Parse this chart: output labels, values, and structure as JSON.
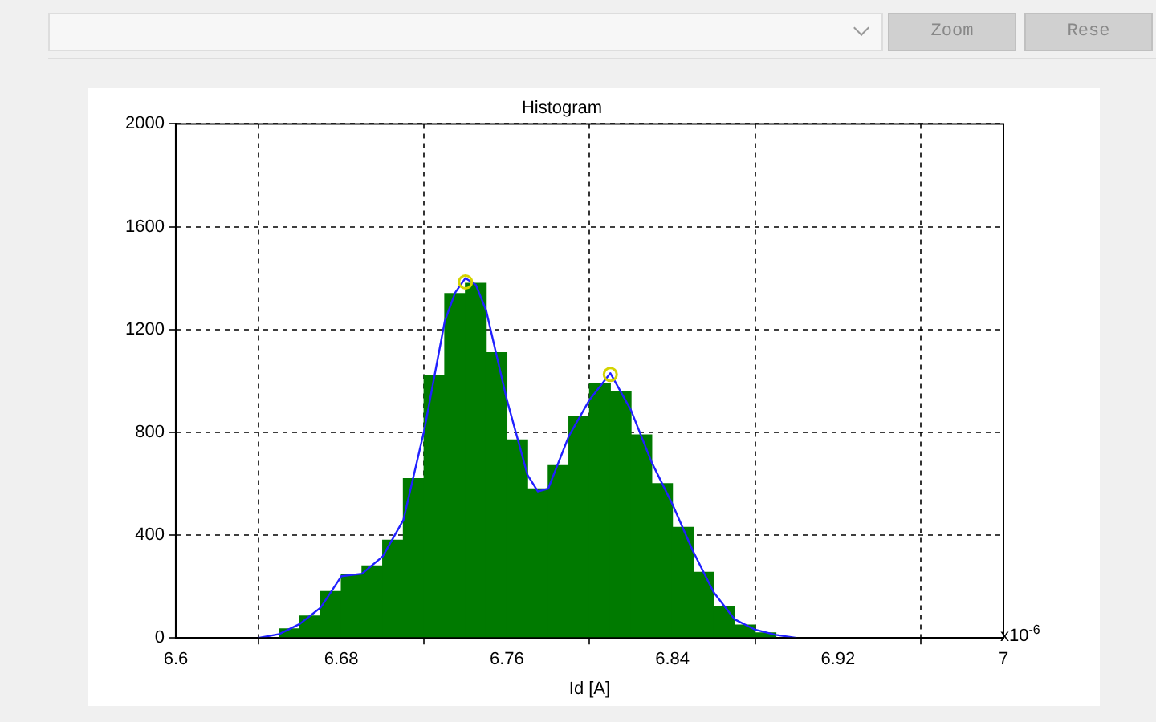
{
  "chart_data": {
    "type": "histogram",
    "title": "Histogram",
    "xlabel": "Id [A]",
    "bins": [
      6.64,
      6.65,
      6.66,
      6.67,
      6.68,
      6.69,
      6.7,
      6.71,
      6.72,
      6.73,
      6.74,
      6.75,
      6.76,
      6.77,
      6.78,
      6.79,
      6.8,
      6.81,
      6.82,
      6.83,
      6.84,
      6.85,
      6.86,
      6.87,
      6.88,
      6.89,
      6.9
    ],
    "values": [
      null,
      35,
      85,
      180,
      245,
      280,
      380,
      620,
      1020,
      1340,
      1380,
      1110,
      770,
      580,
      670,
      860,
      990,
      960,
      790,
      600,
      430,
      255,
      120,
      50,
      20,
      null
    ],
    "color": "#007a00",
    "series": [
      {
        "type": "line",
        "color": "#2020ff",
        "x": [
          6.64,
          6.65,
          6.66,
          6.67,
          6.68,
          6.69,
          6.7,
          6.71,
          6.72,
          6.73,
          6.735,
          6.74,
          6.745,
          6.75,
          6.76,
          6.77,
          6.775,
          6.78,
          6.79,
          6.8,
          6.81,
          6.82,
          6.83,
          6.84,
          6.85,
          6.86,
          6.87,
          6.88,
          6.89,
          6.9
        ],
        "values": [
          0,
          15,
          55,
          118,
          240,
          250,
          317,
          459,
          805,
          1232,
          1343,
          1400,
          1374,
          1274,
          927,
          634,
          570,
          581,
          786,
          927,
          1030,
          886,
          683,
          520,
          337,
          177,
          73,
          32,
          12,
          0
        ]
      },
      {
        "type": "scatter",
        "color": "#d4d400",
        "marker": "circle",
        "x": [
          6.74,
          6.81
        ],
        "values": [
          1385,
          1025
        ]
      }
    ],
    "xlim": [
      6.6,
      7
    ],
    "xticks": [
      6.6,
      6.68,
      6.76,
      6.84,
      6.92,
      7
    ],
    "ylim": [
      0,
      2000
    ],
    "yticks": [
      0,
      400,
      800,
      1200,
      1600,
      2000
    ],
    "grid": true,
    "legend": false,
    "annotations": [
      "x10$^{-6}$",
      "Zoom",
      "Rese"
    ]
  }
}
